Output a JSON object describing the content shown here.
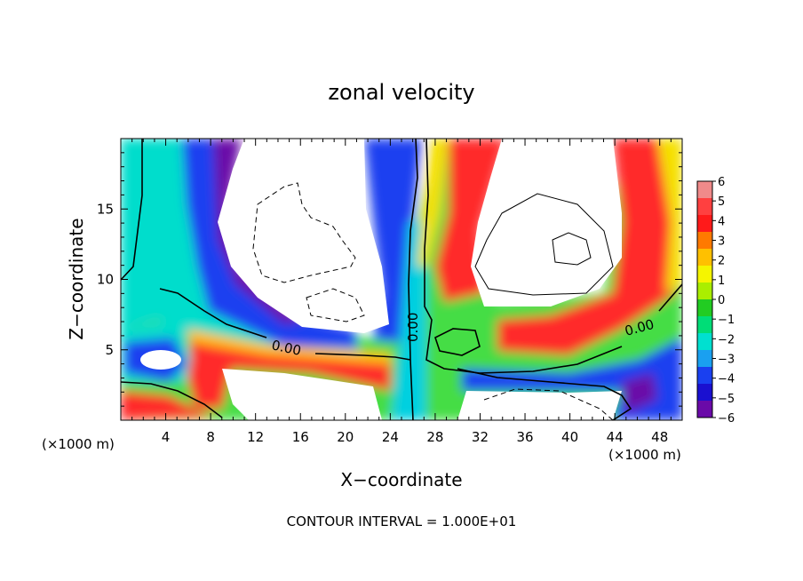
{
  "chart_data": {
    "type": "heatmap",
    "title": "zonal velocity",
    "xlabel": "X−coordinate",
    "ylabel": "Z−coordinate",
    "x_unit_left": "(×1000 m)",
    "x_unit_right": "(×1000 m)",
    "footer": "CONTOUR INTERVAL = 1.000E+01",
    "xlim": [
      0,
      50
    ],
    "ylim": [
      0,
      20
    ],
    "x_ticks": [
      4,
      8,
      12,
      16,
      20,
      24,
      28,
      32,
      36,
      40,
      44,
      48
    ],
    "y_ticks": [
      5,
      10,
      15
    ],
    "colorbar": {
      "levels": [
        -6,
        -5,
        -4,
        -3,
        -2,
        -1,
        0,
        1,
        2,
        3,
        4,
        5,
        6
      ],
      "tick_labels": [
        "6",
        "5",
        "4",
        "3",
        "2",
        "1",
        "0",
        "−1",
        "−2",
        "−3",
        "−4",
        "−5",
        "−6"
      ],
      "colors": [
        "#f08a8a",
        "#ff4040",
        "#ff1a1a",
        "#ff7a00",
        "#ffc000",
        "#f5f500",
        "#aaee00",
        "#22cc22",
        "#00dd77",
        "#00e0d0",
        "#1aa0f0",
        "#1a40f0",
        "#1a10d0",
        "#6a0aa8"
      ]
    },
    "contour_labels": [
      "0.00",
      "0.00",
      "0.00"
    ]
  }
}
